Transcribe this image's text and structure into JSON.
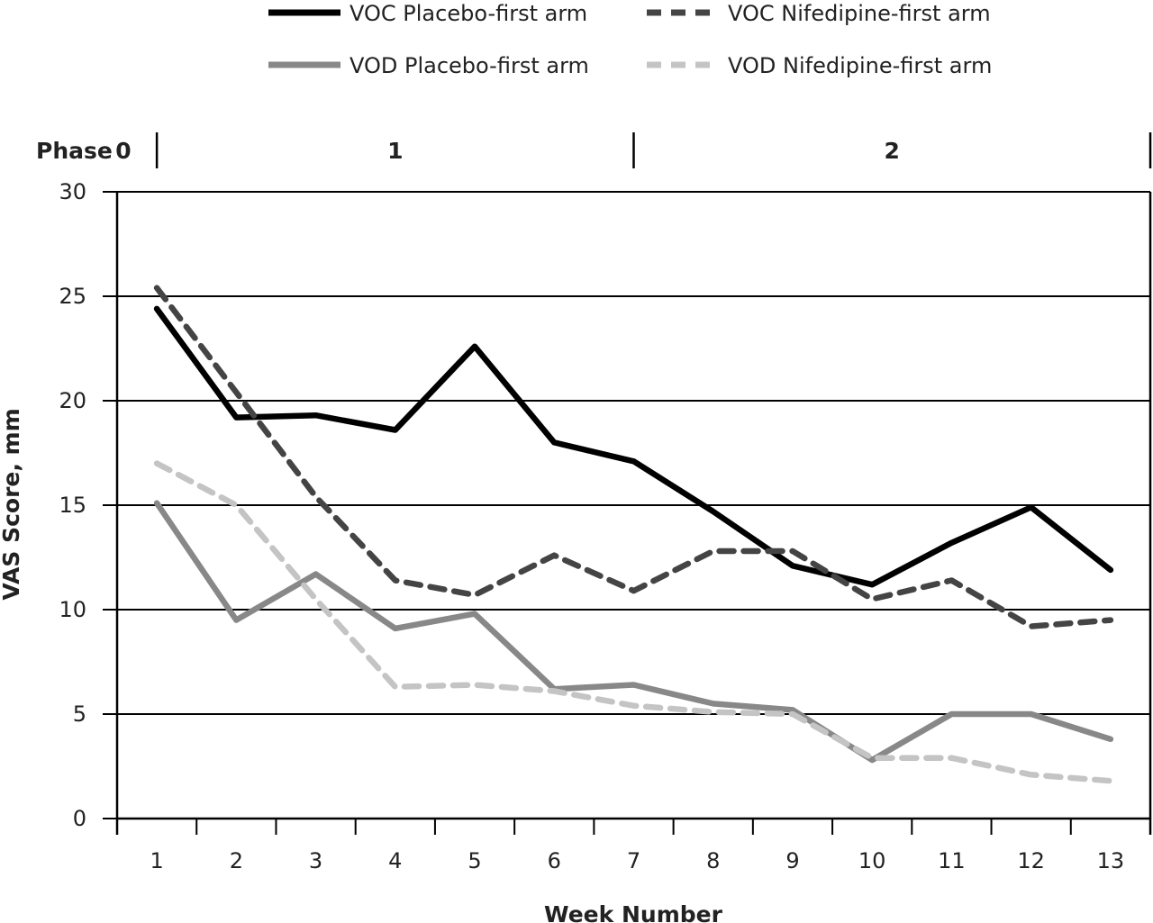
{
  "chart_data": {
    "type": "line",
    "x": [
      1,
      2,
      3,
      4,
      5,
      6,
      7,
      8,
      9,
      10,
      11,
      12,
      13
    ],
    "xlabel": "Week Number",
    "ylabel": "VAS Score, mm",
    "ylim": [
      0,
      30
    ],
    "yticks": [
      0,
      5,
      10,
      15,
      20,
      25,
      30
    ],
    "grid": "horizontal",
    "legend_position": "top",
    "phase_label": "Phase",
    "phases": [
      {
        "label": "0",
        "start_week": 0.5,
        "end_week": 1.0
      },
      {
        "label": "1",
        "start_week": 1.0,
        "end_week": 7.0
      },
      {
        "label": "2",
        "start_week": 7.0,
        "end_week": 13.5
      }
    ],
    "series": [
      {
        "name": "VOC Placebo-first arm",
        "color": "#000000",
        "style": "solid",
        "values": [
          24.4,
          19.2,
          19.3,
          18.6,
          22.6,
          18.0,
          17.1,
          14.7,
          12.1,
          11.2,
          13.2,
          14.9,
          11.9
        ]
      },
      {
        "name": "VOC Nifedipine-first arm",
        "color": "#444444",
        "style": "dashed",
        "values": [
          25.4,
          20.4,
          15.4,
          11.4,
          10.7,
          12.6,
          10.9,
          12.8,
          12.8,
          10.5,
          11.4,
          9.2,
          9.5
        ]
      },
      {
        "name": "VOD Placebo-first arm",
        "color": "#888888",
        "style": "solid",
        "values": [
          15.1,
          9.5,
          11.7,
          9.1,
          9.8,
          6.2,
          6.4,
          5.5,
          5.2,
          2.8,
          5.0,
          5.0,
          3.8
        ]
      },
      {
        "name": "VOD Nifedipine-first arm",
        "color": "#c4c4c4",
        "style": "dashed",
        "values": [
          17.0,
          15.0,
          10.5,
          6.3,
          6.4,
          6.1,
          5.4,
          5.1,
          5.0,
          2.9,
          2.9,
          2.1,
          1.8
        ]
      }
    ]
  }
}
